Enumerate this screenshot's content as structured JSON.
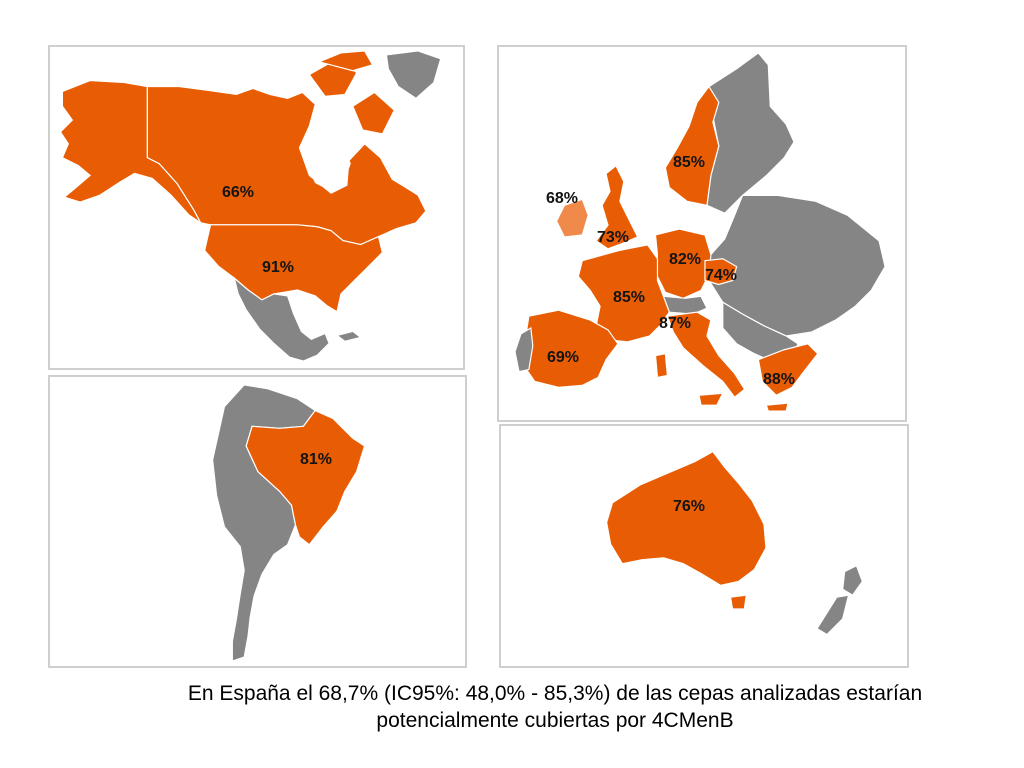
{
  "colors": {
    "covered": "#e85d04",
    "not_covered": "#858585",
    "ireland": "#f08a4b",
    "panel_border": "#cfcfcf"
  },
  "north_america": {
    "canada": "66%",
    "usa": "91%"
  },
  "europe": {
    "ireland": "68%",
    "norway": "85%",
    "uk": "73%",
    "germany": "82%",
    "czech_republic": "74%",
    "france": "85%",
    "italy": "87%",
    "spain": "69%",
    "greece": "88%"
  },
  "south_america": {
    "brazil": "81%"
  },
  "oceania": {
    "australia": "76%"
  },
  "caption": {
    "line1": "En España el 68,7% (IC95%: 48,0% - 85,3%) de las cepas analizadas estarían",
    "line2": "potencialmente cubiertas por 4CMenB"
  }
}
